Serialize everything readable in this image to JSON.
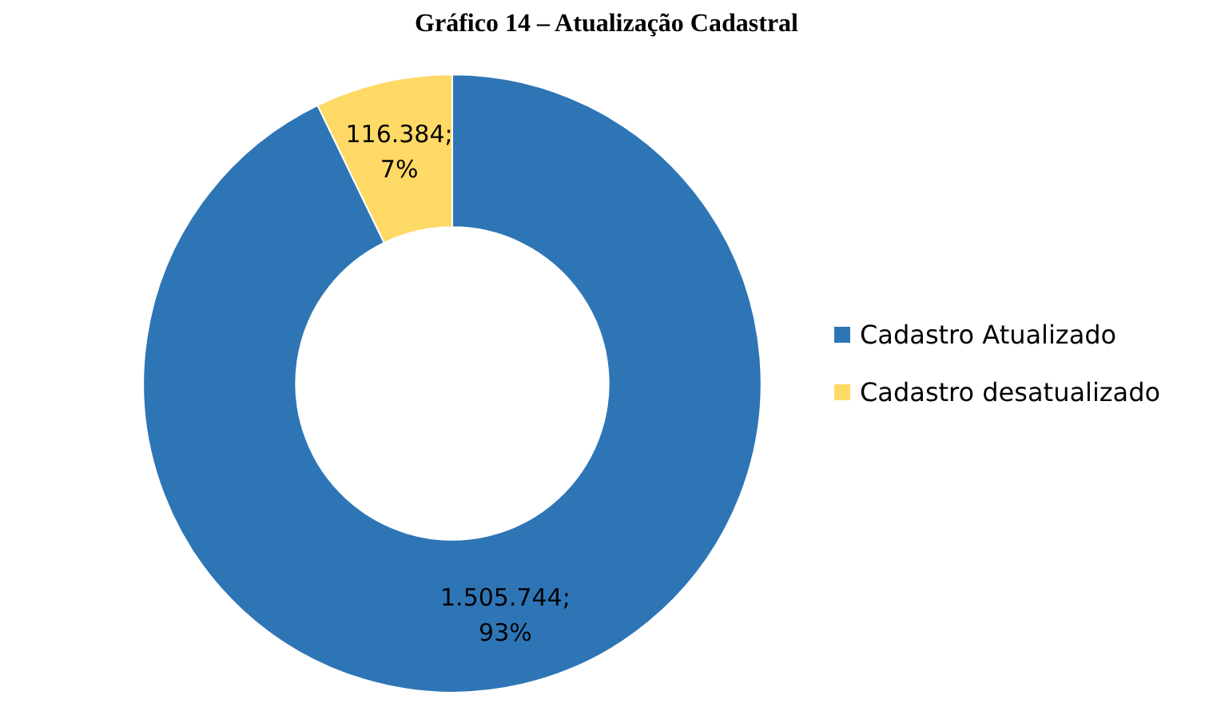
{
  "chart_data": {
    "type": "donut",
    "title": "Gráfico 14 – Atualização Cadastral",
    "categories": [
      "Cadastro Atualizado",
      "Cadastro desatualizado"
    ],
    "values": [
      1505744,
      116384
    ],
    "colors": [
      "#2e75b6",
      "#ffd966"
    ],
    "value_labels": [
      "1.505.744; 93%",
      "116.384; 7%"
    ],
    "legend": "right"
  }
}
